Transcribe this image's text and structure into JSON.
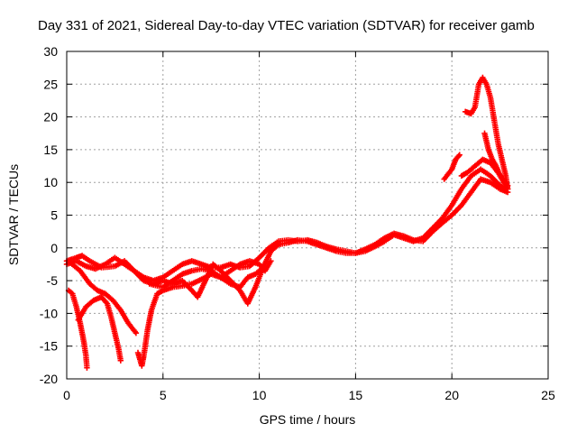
{
  "chart_data": {
    "type": "scatter",
    "title": "Day 331 of 2021, Sidereal Day-to-day VTEC variation (SDTVAR) for receiver gamb",
    "xlabel": "GPS time / hours",
    "ylabel": "SDTVAR / TECUs",
    "xlim": [
      0,
      25
    ],
    "ylim": [
      -20,
      30
    ],
    "xticks": [
      "0",
      "5",
      "10",
      "15",
      "20",
      "25"
    ],
    "yticks": [
      "-20",
      "-15",
      "-10",
      "-5",
      "0",
      "5",
      "10",
      "15",
      "20",
      "25",
      "30"
    ],
    "grid": true,
    "marker": "plus",
    "color": "#ff0000",
    "series": [
      {
        "name": "arc-1",
        "points": [
          [
            0.0,
            -2.5
          ],
          [
            0.5,
            -2.0
          ],
          [
            1.0,
            -2.8
          ],
          [
            1.5,
            -3.2
          ],
          [
            2.0,
            -2.5
          ],
          [
            2.5,
            -1.5
          ],
          [
            3.0,
            -2.5
          ],
          [
            3.5,
            -3.5
          ],
          [
            4.0,
            -4.5
          ],
          [
            4.5,
            -5.0
          ],
          [
            5.0,
            -4.5
          ],
          [
            5.5,
            -3.5
          ],
          [
            6.0,
            -2.5
          ],
          [
            6.5,
            -2.0
          ],
          [
            7.0,
            -2.5
          ],
          [
            7.5,
            -3.0
          ],
          [
            8.0,
            -3.0
          ],
          [
            8.5,
            -2.5
          ],
          [
            9.0,
            -3.0
          ],
          [
            9.5,
            -2.8
          ],
          [
            10.0,
            -1.5
          ],
          [
            10.5,
            0.0
          ],
          [
            11.0,
            1.0
          ],
          [
            11.5,
            1.2
          ],
          [
            12.0,
            1.0
          ],
          [
            12.5,
            1.2
          ],
          [
            13.0,
            0.8
          ],
          [
            13.5,
            0.2
          ],
          [
            14.0,
            -0.2
          ],
          [
            14.5,
            -0.5
          ],
          [
            15.0,
            -0.8
          ],
          [
            15.5,
            -0.5
          ],
          [
            16.0,
            0.2
          ],
          [
            16.5,
            1.0
          ],
          [
            17.0,
            2.0
          ],
          [
            17.5,
            1.5
          ],
          [
            18.0,
            1.0
          ],
          [
            18.5,
            1.5
          ],
          [
            19.0,
            3.0
          ],
          [
            19.5,
            4.5
          ],
          [
            20.0,
            6.5
          ],
          [
            20.5,
            9.0
          ],
          [
            21.0,
            11.0
          ],
          [
            21.5,
            12.0
          ],
          [
            22.0,
            11.0
          ],
          [
            22.5,
            9.5
          ],
          [
            22.9,
            9.0
          ]
        ]
      },
      {
        "name": "arc-2",
        "points": [
          [
            0.0,
            -2.0
          ],
          [
            0.5,
            -1.5
          ],
          [
            0.8,
            -1.2
          ],
          [
            1.2,
            -2.0
          ],
          [
            1.8,
            -3.0
          ],
          [
            2.5,
            -2.8
          ],
          [
            3.0,
            -2.0
          ],
          [
            3.5,
            -3.5
          ],
          [
            4.0,
            -5.0
          ],
          [
            4.5,
            -5.5
          ],
          [
            5.0,
            -5.0
          ],
          [
            5.5,
            -5.5
          ],
          [
            6.0,
            -5.0
          ],
          [
            6.5,
            -6.5
          ],
          [
            6.8,
            -7.5
          ],
          [
            7.2,
            -5.0
          ],
          [
            7.6,
            -2.5
          ],
          [
            8.0,
            -3.5
          ],
          [
            8.5,
            -5.0
          ],
          [
            9.0,
            -6.5
          ],
          [
            9.4,
            -8.5
          ],
          [
            9.8,
            -6.0
          ],
          [
            10.2,
            -3.0
          ],
          [
            10.6,
            -0.5
          ],
          [
            11.0,
            0.5
          ],
          [
            11.5,
            0.8
          ],
          [
            12.0,
            1.2
          ],
          [
            12.5,
            1.0
          ],
          [
            13.0,
            0.5
          ],
          [
            13.5,
            0.0
          ],
          [
            14.0,
            -0.5
          ],
          [
            14.5,
            -0.8
          ],
          [
            15.0,
            -0.8
          ],
          [
            15.5,
            -0.2
          ],
          [
            16.0,
            0.5
          ],
          [
            16.5,
            1.5
          ],
          [
            17.0,
            2.2
          ],
          [
            17.5,
            1.8
          ],
          [
            18.0,
            1.2
          ],
          [
            18.5,
            1.0
          ],
          [
            19.0,
            2.5
          ],
          [
            19.5,
            3.8
          ],
          [
            20.0,
            5.0
          ],
          [
            20.5,
            6.5
          ],
          [
            21.0,
            8.5
          ],
          [
            21.5,
            10.5
          ],
          [
            22.0,
            10.0
          ],
          [
            22.5,
            9.0
          ],
          [
            22.9,
            8.5
          ]
        ]
      },
      {
        "name": "arc-3",
        "points": [
          [
            0.2,
            -2.3
          ],
          [
            0.7,
            -3.5
          ],
          [
            1.2,
            -5.5
          ],
          [
            1.6,
            -6.5
          ],
          [
            2.0,
            -7.0
          ],
          [
            2.4,
            -8.0
          ],
          [
            2.8,
            -9.5
          ],
          [
            3.2,
            -11.5
          ],
          [
            3.6,
            -13.0
          ]
        ]
      },
      {
        "name": "arc-4",
        "points": [
          [
            0.1,
            -6.5
          ],
          [
            0.3,
            -7.0
          ],
          [
            0.5,
            -9.0
          ],
          [
            0.7,
            -11.5
          ],
          [
            0.9,
            -14.5
          ],
          [
            1.0,
            -16.5
          ],
          [
            1.05,
            -18.3
          ]
        ]
      },
      {
        "name": "arc-5",
        "points": [
          [
            0.6,
            -11.0
          ],
          [
            1.0,
            -9.0
          ],
          [
            1.4,
            -8.0
          ],
          [
            1.8,
            -7.5
          ],
          [
            2.1,
            -8.5
          ],
          [
            2.3,
            -10.5
          ],
          [
            2.5,
            -13.0
          ],
          [
            2.7,
            -15.5
          ],
          [
            2.8,
            -17.2
          ]
        ]
      },
      {
        "name": "arc-6",
        "points": [
          [
            3.7,
            -16.0
          ],
          [
            3.8,
            -17.0
          ],
          [
            3.9,
            -18.0
          ],
          [
            4.0,
            -16.5
          ],
          [
            4.2,
            -12.5
          ],
          [
            4.4,
            -9.5
          ],
          [
            4.7,
            -7.0
          ],
          [
            5.0,
            -6.5
          ],
          [
            5.5,
            -6.0
          ],
          [
            6.0,
            -5.8
          ],
          [
            6.5,
            -5.5
          ],
          [
            7.0,
            -4.8
          ],
          [
            7.5,
            -4.0
          ],
          [
            8.0,
            -4.5
          ],
          [
            8.5,
            -5.5
          ],
          [
            9.0,
            -6.0
          ],
          [
            9.4,
            -4.5
          ],
          [
            9.8,
            -4.0
          ],
          [
            10.2,
            -3.0
          ]
        ]
      },
      {
        "name": "arc-7",
        "points": [
          [
            4.3,
            -5.5
          ],
          [
            5.0,
            -6.0
          ],
          [
            5.5,
            -5.0
          ],
          [
            6.0,
            -4.0
          ],
          [
            6.5,
            -3.5
          ],
          [
            7.0,
            -3.2
          ],
          [
            7.5,
            -3.5
          ],
          [
            8.0,
            -4.5
          ],
          [
            8.5,
            -3.5
          ],
          [
            9.0,
            -2.5
          ],
          [
            9.5,
            -2.0
          ],
          [
            10.0,
            -2.5
          ],
          [
            10.3,
            -3.5
          ],
          [
            10.6,
            -2.0
          ]
        ]
      },
      {
        "name": "arc-8",
        "points": [
          [
            19.6,
            10.5
          ],
          [
            20.0,
            12.0
          ],
          [
            20.2,
            13.5
          ],
          [
            20.4,
            14.2
          ]
        ]
      },
      {
        "name": "arc-9",
        "points": [
          [
            20.7,
            20.8
          ],
          [
            21.0,
            20.5
          ],
          [
            21.2,
            21.5
          ],
          [
            21.4,
            25.0
          ],
          [
            21.6,
            26.0
          ],
          [
            21.8,
            25.0
          ],
          [
            22.0,
            23.0
          ],
          [
            22.2,
            19.5
          ],
          [
            22.4,
            16.0
          ],
          [
            22.6,
            13.5
          ],
          [
            22.8,
            11.0
          ],
          [
            22.9,
            9.0
          ]
        ]
      },
      {
        "name": "arc-10",
        "points": [
          [
            21.7,
            17.5
          ],
          [
            21.9,
            15.0
          ],
          [
            22.1,
            13.5
          ],
          [
            22.3,
            12.5
          ],
          [
            22.5,
            11.0
          ],
          [
            22.7,
            10.0
          ],
          [
            22.9,
            9.5
          ]
        ]
      },
      {
        "name": "arc-11",
        "points": [
          [
            20.5,
            11.0
          ],
          [
            20.8,
            11.5
          ],
          [
            21.2,
            12.5
          ],
          [
            21.6,
            13.5
          ],
          [
            22.0,
            13.0
          ],
          [
            22.4,
            11.5
          ],
          [
            22.8,
            10.0
          ]
        ]
      }
    ]
  }
}
